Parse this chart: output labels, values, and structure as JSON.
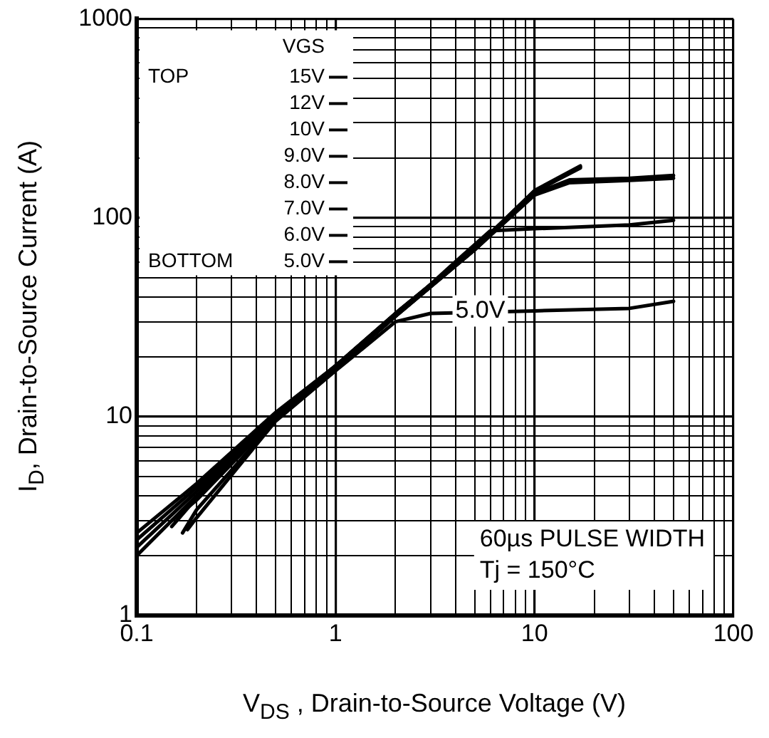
{
  "chart_data": {
    "type": "line",
    "xlabel": "V$_{DS}$ , Drain-to-Source Voltage (V)",
    "ylabel": "I$_{D}$, Drain-to-Source Current (A)",
    "legend_title": "VGS",
    "legend": "top left",
    "log": "xy",
    "grid": true,
    "marker": "none",
    "line_style": "solid",
    "xlim": [
      0.1,
      100
    ],
    "ylim": [
      1,
      1000
    ],
    "xticks": [
      0.1,
      {
        "value": 0.2,
        "label": null
      },
      {
        "value": 0.3,
        "label": null
      },
      {
        "value": 0.4,
        "label": null
      },
      {
        "value": 0.5,
        "label": null
      },
      {
        "value": 0.6,
        "label": null
      },
      {
        "value": 0.7,
        "label": null
      },
      {
        "value": 0.8,
        "label": null
      },
      {
        "value": 0.9,
        "label": null
      },
      1,
      {
        "value": 2,
        "label": null
      },
      {
        "value": 3,
        "label": null
      },
      {
        "value": 4,
        "label": null
      },
      {
        "value": 5,
        "label": null
      },
      {
        "value": 6,
        "label": null
      },
      {
        "value": 7,
        "label": null
      },
      {
        "value": 8,
        "label": null
      },
      {
        "value": 9,
        "label": null
      },
      10,
      {
        "value": 20,
        "label": null
      },
      {
        "value": 30,
        "label": null
      },
      {
        "value": 40,
        "label": null
      },
      {
        "value": 50,
        "label": null
      },
      {
        "value": 60,
        "label": null
      },
      {
        "value": 70,
        "label": null
      },
      {
        "value": 80,
        "label": null
      },
      {
        "value": 90,
        "label": null
      },
      100
    ],
    "yticks": [
      1,
      {
        "value": 2,
        "label": null
      },
      {
        "value": 3,
        "label": null
      },
      {
        "value": 4,
        "label": null
      },
      {
        "value": 5,
        "label": null
      },
      {
        "value": 6,
        "label": null
      },
      {
        "value": 7,
        "label": null
      },
      {
        "value": 8,
        "label": null
      },
      {
        "value": 9,
        "label": null
      },
      10,
      {
        "value": 20,
        "label": null
      },
      {
        "value": 30,
        "label": null
      },
      {
        "value": 40,
        "label": null
      },
      {
        "value": 50,
        "label": null
      },
      {
        "value": 60,
        "label": null
      },
      {
        "value": 70,
        "label": null
      },
      {
        "value": 80,
        "label": null
      },
      {
        "value": 90,
        "label": null
      },
      100,
      {
        "value": 200,
        "label": null
      },
      {
        "value": 300,
        "label": null
      },
      {
        "value": 400,
        "label": null
      },
      {
        "value": 500,
        "label": null
      },
      {
        "value": 600,
        "label": null
      },
      {
        "value": 700,
        "label": null
      },
      {
        "value": 800,
        "label": null
      },
      {
        "value": 900,
        "label": null
      },
      1000
    ],
    "series": [
      {
        "name": "15V",
        "color": "#000000",
        "x": [
          0.1,
          0.2,
          0.5,
          1,
          2,
          5,
          10,
          17
        ],
        "values": [
          2.6,
          4.6,
          10.5,
          18,
          33,
          70,
          137,
          182
        ]
      },
      {
        "name": "12V",
        "color": "#000000",
        "x": [
          0.1,
          0.2,
          0.5,
          1,
          2,
          5,
          10,
          17
        ],
        "values": [
          2.4,
          4.4,
          10.2,
          18,
          33,
          70,
          136,
          180
        ]
      },
      {
        "name": "10V",
        "color": "#000000",
        "x": [
          0.1,
          0.2,
          0.5,
          1,
          2,
          5,
          10,
          17
        ],
        "values": [
          2.2,
          4.2,
          10,
          18,
          33,
          70,
          135,
          178
        ]
      },
      {
        "name": "9.0V",
        "color": "#000000",
        "x": [
          0.1,
          0.2,
          0.5,
          1,
          2,
          5,
          10,
          16
        ],
        "values": [
          2,
          4,
          9.8,
          17.5,
          32,
          69,
          134,
          175
        ]
      },
      {
        "name": "8.0V",
        "color": "#000000",
        "x": [
          0.15,
          0.2,
          0.5,
          1,
          2,
          5,
          10,
          15,
          30,
          50
        ],
        "values": [
          2.8,
          3.9,
          9.8,
          17.5,
          32,
          69,
          132,
          155,
          158,
          163
        ]
      },
      {
        "name": "7.0V",
        "color": "#000000",
        "x": [
          0.17,
          0.2,
          0.5,
          1,
          2,
          5,
          10,
          15,
          30,
          50
        ],
        "values": [
          2.6,
          3.4,
          9.6,
          17.5,
          32,
          69,
          130,
          150,
          154,
          158
        ]
      },
      {
        "name": "6.0V",
        "color": "#000000",
        "x": [
          0.15,
          0.2,
          0.5,
          1,
          2,
          4,
          6,
          10,
          30,
          50
        ],
        "values": [
          3,
          3.8,
          9.8,
          17.5,
          32,
          60,
          86,
          88,
          92,
          97
        ]
      },
      {
        "name": "5.0V",
        "color": "#000000",
        "x": [
          0.18,
          0.2,
          0.5,
          1,
          2,
          3,
          10,
          30,
          50
        ],
        "values": [
          2.7,
          3.1,
          9.5,
          17,
          30,
          33,
          34,
          35,
          38
        ]
      }
    ],
    "annotations": [
      "TOP",
      "BOTTOM",
      {
        "text": "5.0V",
        "x": 4,
        "y": 34
      },
      "60µs PULSE WIDTH",
      "Tj = 150°C"
    ]
  }
}
